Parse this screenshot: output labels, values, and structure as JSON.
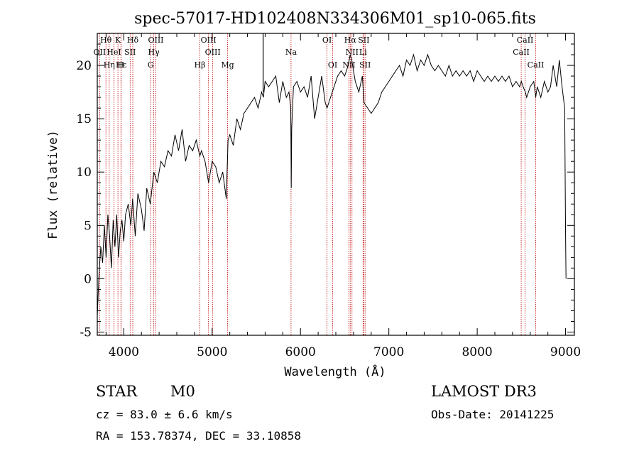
{
  "chart_data": {
    "type": "line",
    "title": "spec-57017-HD102408N334306M01_sp10-065.fits",
    "xlabel": "Wavelength (Å)",
    "ylabel": "Flux (relative)",
    "xlim": [
      3700,
      9100
    ],
    "ylim": [
      -5.3,
      23
    ],
    "xticks": [
      4000,
      5000,
      6000,
      7000,
      8000,
      9000
    ],
    "yticks": [
      -5,
      0,
      5,
      10,
      15,
      20
    ],
    "series": [
      {
        "name": "spectrum",
        "x": [
          3700,
          3720,
          3740,
          3760,
          3780,
          3800,
          3820,
          3840,
          3860,
          3880,
          3900,
          3920,
          3940,
          3960,
          3980,
          4000,
          4020,
          4050,
          4080,
          4100,
          4130,
          4160,
          4200,
          4230,
          4260,
          4300,
          4340,
          4380,
          4420,
          4460,
          4500,
          4540,
          4580,
          4620,
          4660,
          4700,
          4740,
          4780,
          4820,
          4860,
          4880,
          4920,
          4960,
          5000,
          5040,
          5080,
          5120,
          5160,
          5180,
          5200,
          5240,
          5280,
          5320,
          5360,
          5400,
          5440,
          5480,
          5520,
          5560,
          5580,
          5600,
          5640,
          5680,
          5720,
          5760,
          5800,
          5840,
          5870,
          5890,
          5895,
          5900,
          5920,
          5960,
          6000,
          6040,
          6080,
          6120,
          6160,
          6200,
          6240,
          6280,
          6300,
          6340,
          6380,
          6420,
          6460,
          6500,
          6540,
          6562,
          6580,
          6620,
          6660,
          6700,
          6720,
          6760,
          6800,
          6840,
          6880,
          6920,
          6960,
          7000,
          7040,
          7080,
          7120,
          7160,
          7200,
          7240,
          7280,
          7320,
          7360,
          7400,
          7440,
          7480,
          7520,
          7560,
          7600,
          7640,
          7680,
          7720,
          7760,
          7800,
          7840,
          7880,
          7920,
          7960,
          8000,
          8040,
          8080,
          8120,
          8160,
          8200,
          8240,
          8280,
          8320,
          8360,
          8400,
          8440,
          8480,
          8500,
          8520,
          8545,
          8560,
          8600,
          8640,
          8662,
          8680,
          8720,
          8760,
          8800,
          8830,
          8860,
          8900,
          8930,
          8960,
          8990,
          9000,
          9005
        ],
        "values": [
          -3.5,
          0.5,
          3.0,
          1.5,
          5.0,
          2.0,
          6.0,
          4.0,
          1.0,
          5.5,
          3.0,
          6.0,
          2.0,
          4.5,
          5.5,
          3.5,
          6.0,
          7.0,
          5.0,
          7.5,
          4.0,
          8.0,
          6.5,
          4.5,
          8.5,
          7.0,
          10.0,
          9.0,
          11.0,
          10.5,
          12.0,
          11.5,
          13.5,
          12.0,
          14.0,
          11.0,
          12.5,
          12.0,
          13.0,
          11.5,
          12.0,
          11.0,
          9.0,
          11.0,
          10.5,
          9.0,
          10.0,
          7.5,
          13.0,
          13.5,
          12.5,
          15.0,
          14.0,
          15.5,
          16.0,
          16.5,
          17.0,
          16.0,
          17.5,
          17.0,
          18.5,
          18.0,
          18.5,
          19.0,
          16.5,
          18.5,
          17.0,
          17.5,
          16.0,
          8.5,
          14.0,
          18.0,
          18.5,
          17.5,
          18.0,
          17.0,
          19.0,
          15.0,
          17.0,
          19.0,
          16.5,
          16.0,
          17.0,
          18.0,
          19.0,
          19.5,
          19.0,
          20.0,
          21.0,
          20.5,
          18.5,
          17.5,
          19.0,
          16.5,
          16.0,
          15.5,
          16.0,
          16.5,
          17.5,
          18.0,
          18.5,
          19.0,
          19.5,
          20.0,
          19.0,
          20.5,
          20.0,
          21.0,
          19.5,
          20.5,
          20.0,
          21.0,
          20.0,
          19.5,
          20.0,
          19.5,
          19.0,
          20.0,
          19.0,
          19.5,
          19.0,
          19.5,
          19.0,
          19.5,
          18.5,
          19.5,
          19.0,
          18.5,
          19.0,
          18.5,
          19.0,
          18.5,
          19.0,
          18.5,
          19.0,
          18.0,
          18.5,
          18.0,
          18.5,
          18.0,
          17.5,
          17.0,
          18.0,
          18.5,
          17.0,
          18.0,
          17.0,
          18.5,
          17.5,
          18.0,
          20.0,
          18.0,
          20.5,
          18.0,
          16.0,
          4.0,
          0.0
        ]
      }
    ],
    "spectral_lines": [
      {
        "label": "Hθ",
        "x": 3798,
        "row": 0
      },
      {
        "label": "K",
        "x": 3934,
        "row": 0
      },
      {
        "label": "Hδ",
        "x": 4102,
        "row": 0
      },
      {
        "label": "OIII",
        "x": 4363,
        "row": 0
      },
      {
        "label": "OIII",
        "x": 4959,
        "row": 0
      },
      {
        "label": "OI",
        "x": 6300,
        "row": 0
      },
      {
        "label": "Hα",
        "x": 6563,
        "row": 0
      },
      {
        "label": "SII",
        "x": 6716,
        "row": 0
      },
      {
        "label": "CaII",
        "x": 8542,
        "row": 0
      },
      {
        "label": "OII",
        "x": 3727,
        "row": 1
      },
      {
        "label": "HeI",
        "x": 3889,
        "row": 1
      },
      {
        "label": "SII",
        "x": 4072,
        "row": 1
      },
      {
        "label": "Hγ",
        "x": 4340,
        "row": 1
      },
      {
        "label": "OIII",
        "x": 5007,
        "row": 1
      },
      {
        "label": "Na",
        "x": 5893,
        "row": 1
      },
      {
        "label": "NII",
        "x": 6583,
        "row": 1
      },
      {
        "label": "Li",
        "x": 6708,
        "row": 1
      },
      {
        "label": "CaII",
        "x": 8498,
        "row": 1
      },
      {
        "label": "Hη",
        "x": 3835,
        "row": 2
      },
      {
        "label": "Hε",
        "x": 3970,
        "row": 2
      },
      {
        "label": "H",
        "x": 3968,
        "row": 2
      },
      {
        "label": "G",
        "x": 4304,
        "row": 2
      },
      {
        "label": "Hβ",
        "x": 4861,
        "row": 2
      },
      {
        "label": "Mg",
        "x": 5175,
        "row": 2
      },
      {
        "label": "OI",
        "x": 6364,
        "row": 2
      },
      {
        "label": "NII",
        "x": 6548,
        "row": 2
      },
      {
        "label": "SII",
        "x": 6731,
        "row": 2
      },
      {
        "label": "CaII",
        "x": 8662,
        "row": 2
      }
    ],
    "line_marker_color": "#c00000",
    "spike": {
      "x": 5577,
      "value": 23
    }
  },
  "info": {
    "object_class": "STAR",
    "subclass": "M0",
    "survey": "LAMOST DR3",
    "redshift": "cz = 83.0 ± 6.6 km/s",
    "obs_date": "Obs-Date: 20141225",
    "coords": "RA = 153.78374, DEC =  33.10858"
  }
}
